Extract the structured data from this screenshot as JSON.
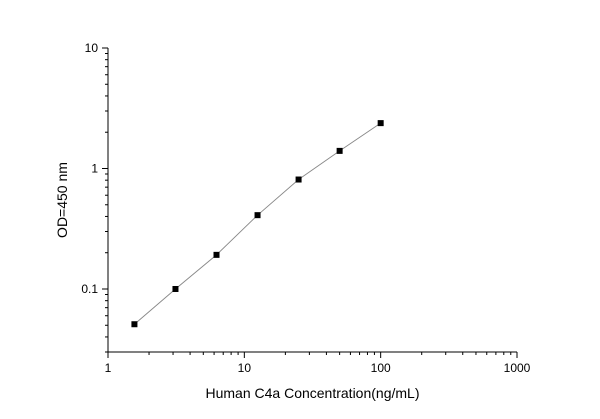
{
  "chart_data": {
    "type": "scatter",
    "title": "",
    "xlabel": "Human C4a Concentration(ng/mL)",
    "ylabel": "OD=450 nm",
    "x_scale": "log",
    "y_scale": "log",
    "xlim": [
      1,
      1000
    ],
    "ylim": [
      0.03,
      10
    ],
    "x_ticks": [
      1,
      10,
      100,
      1000
    ],
    "x_tick_labels": [
      "1",
      "10",
      "100",
      "1000"
    ],
    "y_ticks": [
      0.1,
      1,
      10
    ],
    "y_tick_labels": [
      "0.1",
      "1",
      "10"
    ],
    "grid": false,
    "legend": "none",
    "series": [
      {
        "x": [
          1.5625,
          3.125,
          6.25,
          12.5,
          25,
          50,
          100
        ],
        "y": [
          0.051,
          0.1,
          0.192,
          0.41,
          0.81,
          1.4,
          2.38
        ],
        "marker": "square",
        "line": true,
        "color": "#000000",
        "line_color": "#888888"
      }
    ]
  }
}
